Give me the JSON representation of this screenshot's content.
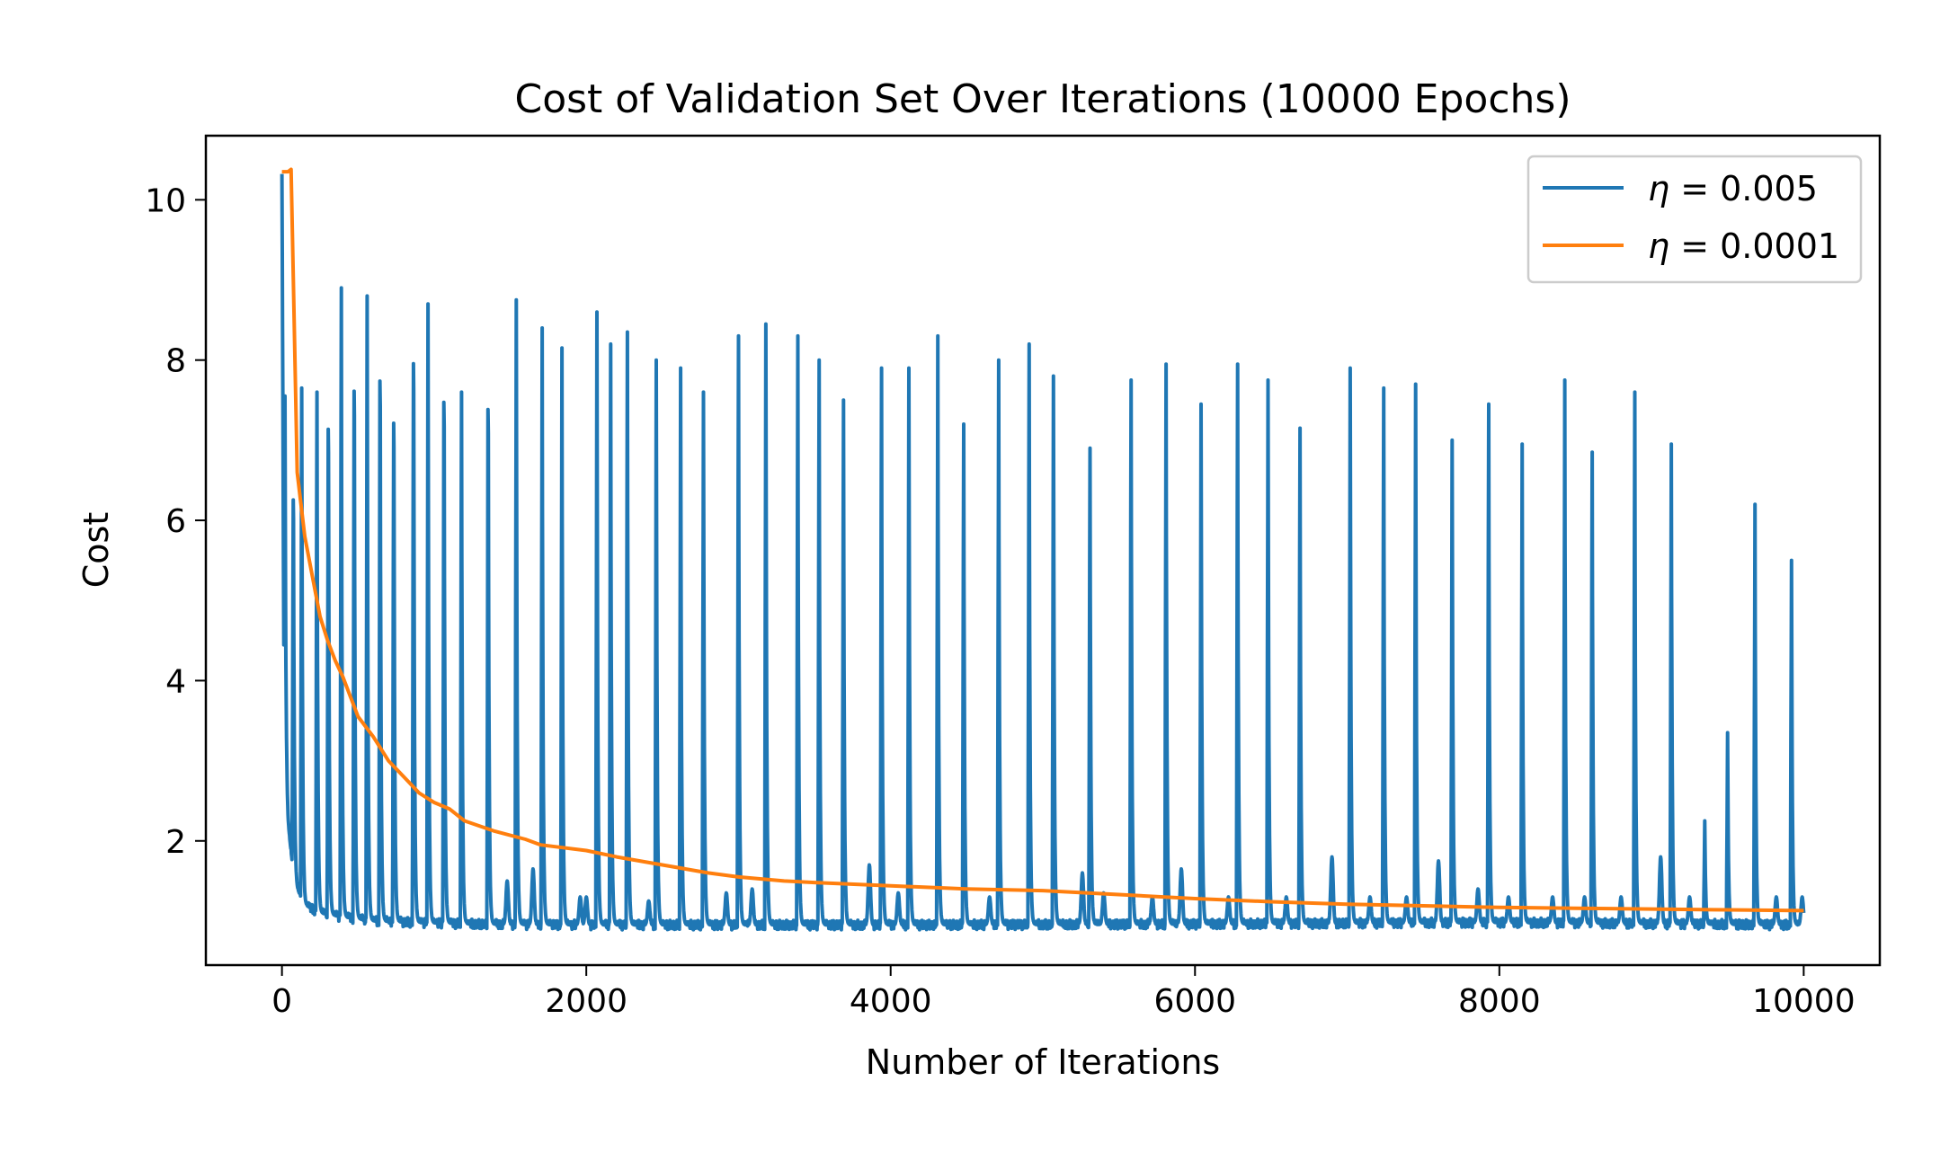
{
  "chart_data": {
    "type": "line",
    "title": "Cost of Validation Set Over Iterations (10000 Epochs)",
    "xlabel": "Number of Iterations",
    "ylabel": "Cost",
    "xlim": [
      -500,
      10500
    ],
    "ylim": [
      0.45,
      10.8
    ],
    "x_ticks": [
      0,
      2000,
      4000,
      6000,
      8000,
      10000
    ],
    "x_tick_labels": [
      "0",
      "2000",
      "4000",
      "6000",
      "8000",
      "10000"
    ],
    "y_ticks": [
      2,
      4,
      6,
      8,
      10
    ],
    "y_tick_labels": [
      "2",
      "4",
      "6",
      "8",
      "10"
    ],
    "grid": false,
    "legend_position": "top-right",
    "series": [
      {
        "name": "η = 0.005",
        "legend_symbol": "η",
        "legend_value": "= 0.005",
        "color": "#1f77b4",
        "baseline": [
          [
            0,
            10.3
          ],
          [
            15,
            3.0
          ],
          [
            40,
            2.2
          ],
          [
            70,
            1.7
          ],
          [
            100,
            1.4
          ],
          [
            150,
            1.2
          ],
          [
            250,
            1.1
          ],
          [
            400,
            1.05
          ],
          [
            600,
            1.0
          ],
          [
            900,
            0.98
          ],
          [
            1300,
            0.96
          ],
          [
            2000,
            0.95
          ],
          [
            3000,
            0.95
          ],
          [
            4000,
            0.95
          ],
          [
            6000,
            0.96
          ],
          [
            8000,
            0.98
          ],
          [
            10000,
            0.95
          ]
        ],
        "spikes": [
          [
            20,
            7.55
          ],
          [
            75,
            6.9
          ],
          [
            130,
            7.65
          ],
          [
            230,
            7.6
          ],
          [
            305,
            8.0
          ],
          [
            390,
            8.9
          ],
          [
            475,
            8.55
          ],
          [
            560,
            8.8
          ],
          [
            645,
            8.7
          ],
          [
            735,
            8.1
          ],
          [
            865,
            8.95
          ],
          [
            960,
            8.7
          ],
          [
            1065,
            8.4
          ],
          [
            1180,
            7.6
          ],
          [
            1355,
            8.3
          ],
          [
            1540,
            8.75
          ],
          [
            1710,
            8.4
          ],
          [
            1840,
            8.15
          ],
          [
            2070,
            8.6
          ],
          [
            2160,
            8.2
          ],
          [
            2270,
            8.35
          ],
          [
            2460,
            8.0
          ],
          [
            2620,
            7.9
          ],
          [
            2770,
            7.6
          ],
          [
            3000,
            8.3
          ],
          [
            3180,
            8.45
          ],
          [
            3390,
            8.3
          ],
          [
            3530,
            8.0
          ],
          [
            3690,
            7.5
          ],
          [
            3940,
            7.9
          ],
          [
            4120,
            7.9
          ],
          [
            4310,
            8.3
          ],
          [
            4480,
            7.2
          ],
          [
            4710,
            8.0
          ],
          [
            4910,
            8.2
          ],
          [
            5070,
            7.8
          ],
          [
            5310,
            6.9
          ],
          [
            5580,
            7.75
          ],
          [
            5810,
            7.95
          ],
          [
            6040,
            7.45
          ],
          [
            6280,
            7.95
          ],
          [
            6480,
            7.75
          ],
          [
            6690,
            7.15
          ],
          [
            7020,
            7.9
          ],
          [
            7240,
            7.65
          ],
          [
            7450,
            7.7
          ],
          [
            7690,
            7.0
          ],
          [
            7930,
            7.45
          ],
          [
            8150,
            6.95
          ],
          [
            8430,
            7.75
          ],
          [
            8610,
            6.85
          ],
          [
            8890,
            7.6
          ],
          [
            9130,
            6.95
          ],
          [
            9350,
            2.25
          ],
          [
            9500,
            3.35
          ],
          [
            9680,
            6.2
          ],
          [
            9920,
            5.5
          ]
        ],
        "small_bumps": [
          [
            1480,
            1.5
          ],
          [
            1650,
            1.65
          ],
          [
            1960,
            1.3
          ],
          [
            2000,
            1.3
          ],
          [
            2410,
            1.25
          ],
          [
            2920,
            1.35
          ],
          [
            3090,
            1.4
          ],
          [
            3860,
            1.7
          ],
          [
            4050,
            1.35
          ],
          [
            4650,
            1.3
          ],
          [
            5260,
            1.6
          ],
          [
            5400,
            1.35
          ],
          [
            5720,
            1.3
          ],
          [
            5910,
            1.65
          ],
          [
            6220,
            1.3
          ],
          [
            6600,
            1.3
          ],
          [
            6900,
            1.8
          ],
          [
            7150,
            1.3
          ],
          [
            7390,
            1.3
          ],
          [
            7600,
            1.75
          ],
          [
            7860,
            1.4
          ],
          [
            8060,
            1.3
          ],
          [
            8350,
            1.3
          ],
          [
            8560,
            1.3
          ],
          [
            8800,
            1.3
          ],
          [
            9060,
            1.8
          ],
          [
            9250,
            1.3
          ],
          [
            9820,
            1.3
          ],
          [
            9990,
            1.3
          ]
        ]
      },
      {
        "name": "η = 0.0001",
        "legend_symbol": "η",
        "legend_value": "= 0.0001",
        "color": "#ff7f0e",
        "points": [
          [
            0,
            10.35
          ],
          [
            40,
            10.35
          ],
          [
            60,
            10.38
          ],
          [
            80,
            8.5
          ],
          [
            100,
            6.6
          ],
          [
            150,
            5.8
          ],
          [
            200,
            5.3
          ],
          [
            250,
            4.8
          ],
          [
            300,
            4.5
          ],
          [
            350,
            4.25
          ],
          [
            400,
            4.05
          ],
          [
            450,
            3.8
          ],
          [
            500,
            3.55
          ],
          [
            600,
            3.3
          ],
          [
            700,
            3.0
          ],
          [
            800,
            2.8
          ],
          [
            900,
            2.6
          ],
          [
            1000,
            2.48
          ],
          [
            1100,
            2.4
          ],
          [
            1200,
            2.25
          ],
          [
            1400,
            2.12
          ],
          [
            1600,
            2.02
          ],
          [
            1700,
            1.95
          ],
          [
            2000,
            1.88
          ],
          [
            2200,
            1.8
          ],
          [
            2500,
            1.7
          ],
          [
            2800,
            1.6
          ],
          [
            3000,
            1.55
          ],
          [
            3300,
            1.5
          ],
          [
            3500,
            1.48
          ],
          [
            4000,
            1.44
          ],
          [
            4500,
            1.4
          ],
          [
            5000,
            1.38
          ],
          [
            5500,
            1.33
          ],
          [
            6000,
            1.28
          ],
          [
            6500,
            1.24
          ],
          [
            7000,
            1.21
          ],
          [
            7500,
            1.19
          ],
          [
            8000,
            1.17
          ],
          [
            8500,
            1.16
          ],
          [
            9000,
            1.15
          ],
          [
            9500,
            1.14
          ],
          [
            10000,
            1.13
          ]
        ]
      }
    ]
  }
}
